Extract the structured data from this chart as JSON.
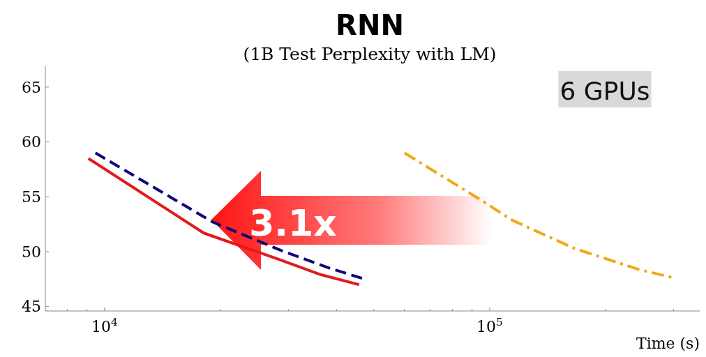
{
  "chart_data": {
    "type": "line",
    "title": "RNN",
    "subtitle": "(1B Test Perplexity with LM)",
    "xlabel": "Time (s)",
    "log": "x",
    "grid": false,
    "xlim": [
      7020,
      351000
    ],
    "ylim": [
      44.6,
      66.9
    ],
    "xticks": [
      {
        "value": 8000,
        "label": null
      },
      {
        "value": 9000,
        "label": null
      },
      {
        "value": 10000,
        "label": "10$^{4}$"
      },
      {
        "value": 20000,
        "label": null
      },
      {
        "value": 30000,
        "label": null
      },
      {
        "value": 40000,
        "label": null
      },
      {
        "value": 50000,
        "label": null
      },
      {
        "value": 60000,
        "label": null
      },
      {
        "value": 70000,
        "label": null
      },
      {
        "value": 80000,
        "label": null
      },
      {
        "value": 90000,
        "label": null
      },
      {
        "value": 100000,
        "label": "10$^{5}$"
      },
      {
        "value": 200000,
        "label": null
      },
      {
        "value": 300000,
        "label": null
      }
    ],
    "yticks": [
      45,
      50,
      55,
      60,
      65
    ],
    "annotations": [
      "6 GPUs",
      "3.1x"
    ],
    "series": [
      {
        "color": "#e31a1c",
        "line_style": "solid",
        "x": [
          9080,
          18100,
          28400,
          36500,
          45800
        ],
        "values": [
          58.5,
          51.7,
          49.3,
          47.9,
          47.0
        ]
      },
      {
        "color": "#0a0a78",
        "line_style": "dashed",
        "x": [
          9470,
          19100,
          28800,
          38400,
          47400
        ],
        "values": [
          59.0,
          52.7,
          50.1,
          48.5,
          47.5
        ]
      },
      {
        "color": "#f0a818",
        "line_style": "dashdot",
        "x": [
          60100,
          97000,
          114000,
          166000,
          243000,
          302000
        ],
        "values": [
          59.0,
          54.5,
          52.9,
          50.3,
          48.4,
          47.6
        ]
      }
    ]
  }
}
